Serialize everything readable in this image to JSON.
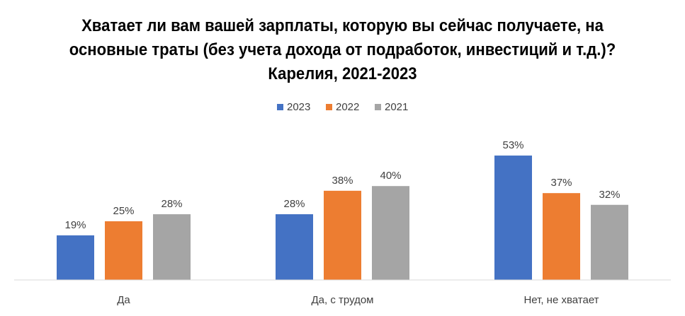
{
  "chart_data": {
    "type": "bar",
    "title": "Хватает ли вам вашей зарплаты, которую вы сейчас получаете, на основные траты (без учета дохода от подработок, инвестиций и т.д.)? Карелия, 2021-2023",
    "categories": [
      "Да",
      "Да, с трудом",
      "Нет, не хватает"
    ],
    "series": [
      {
        "name": "2023",
        "values": [
          19,
          28,
          53
        ],
        "labels": [
          "19%",
          "28%",
          "53%"
        ],
        "color": "#4472C4"
      },
      {
        "name": "2022",
        "values": [
          25,
          38,
          37
        ],
        "labels": [
          "25%",
          "38%",
          "37%"
        ],
        "color": "#ED7D31"
      },
      {
        "name": "2021",
        "values": [
          28,
          40,
          32
        ],
        "labels": [
          "28%",
          "40%",
          "32%"
        ],
        "color": "#A5A5A5"
      }
    ],
    "xlabel": "",
    "ylabel": "",
    "ylim": [
      0,
      60
    ],
    "grid": false,
    "legend": "top"
  }
}
